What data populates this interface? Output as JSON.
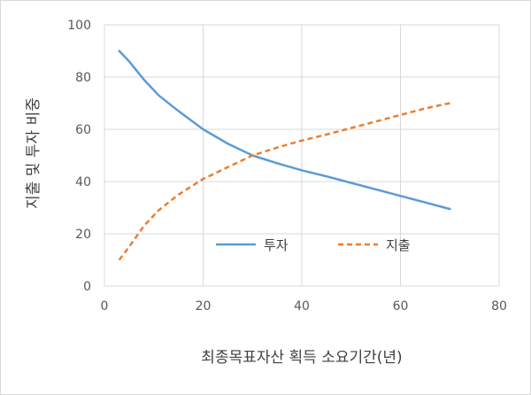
{
  "chart_data": {
    "type": "line",
    "xlabel": "최종목표자산 획득 소요기간(년)",
    "ylabel": "지출 및 투자 비중",
    "xlim": [
      0,
      80
    ],
    "ylim": [
      0,
      100
    ],
    "x_ticks": [
      0,
      20,
      40,
      60,
      80
    ],
    "y_ticks": [
      0,
      20,
      40,
      60,
      80,
      100
    ],
    "grid": true,
    "legend_position": "inside-lower-center",
    "series": [
      {
        "name": "투자",
        "color": "#5b9bd5",
        "style": "solid",
        "x": [
          3,
          5,
          8,
          11,
          15,
          20,
          25,
          30,
          35,
          40,
          45,
          50,
          55,
          60,
          65,
          70
        ],
        "y": [
          90,
          86,
          79,
          73,
          67,
          60,
          54.5,
          50,
          47,
          44.3,
          42,
          39.5,
          37,
          34.5,
          32,
          29.5
        ]
      },
      {
        "name": "지출",
        "color": "#ed7d31",
        "style": "dashed",
        "x": [
          3,
          5,
          8,
          11,
          15,
          20,
          25,
          30,
          35,
          40,
          45,
          50,
          55,
          60,
          65,
          70
        ],
        "y": [
          10,
          15,
          23,
          29,
          35,
          41,
          45.5,
          50,
          53,
          55.7,
          58,
          60.5,
          63,
          65.5,
          68,
          70
        ]
      }
    ]
  }
}
